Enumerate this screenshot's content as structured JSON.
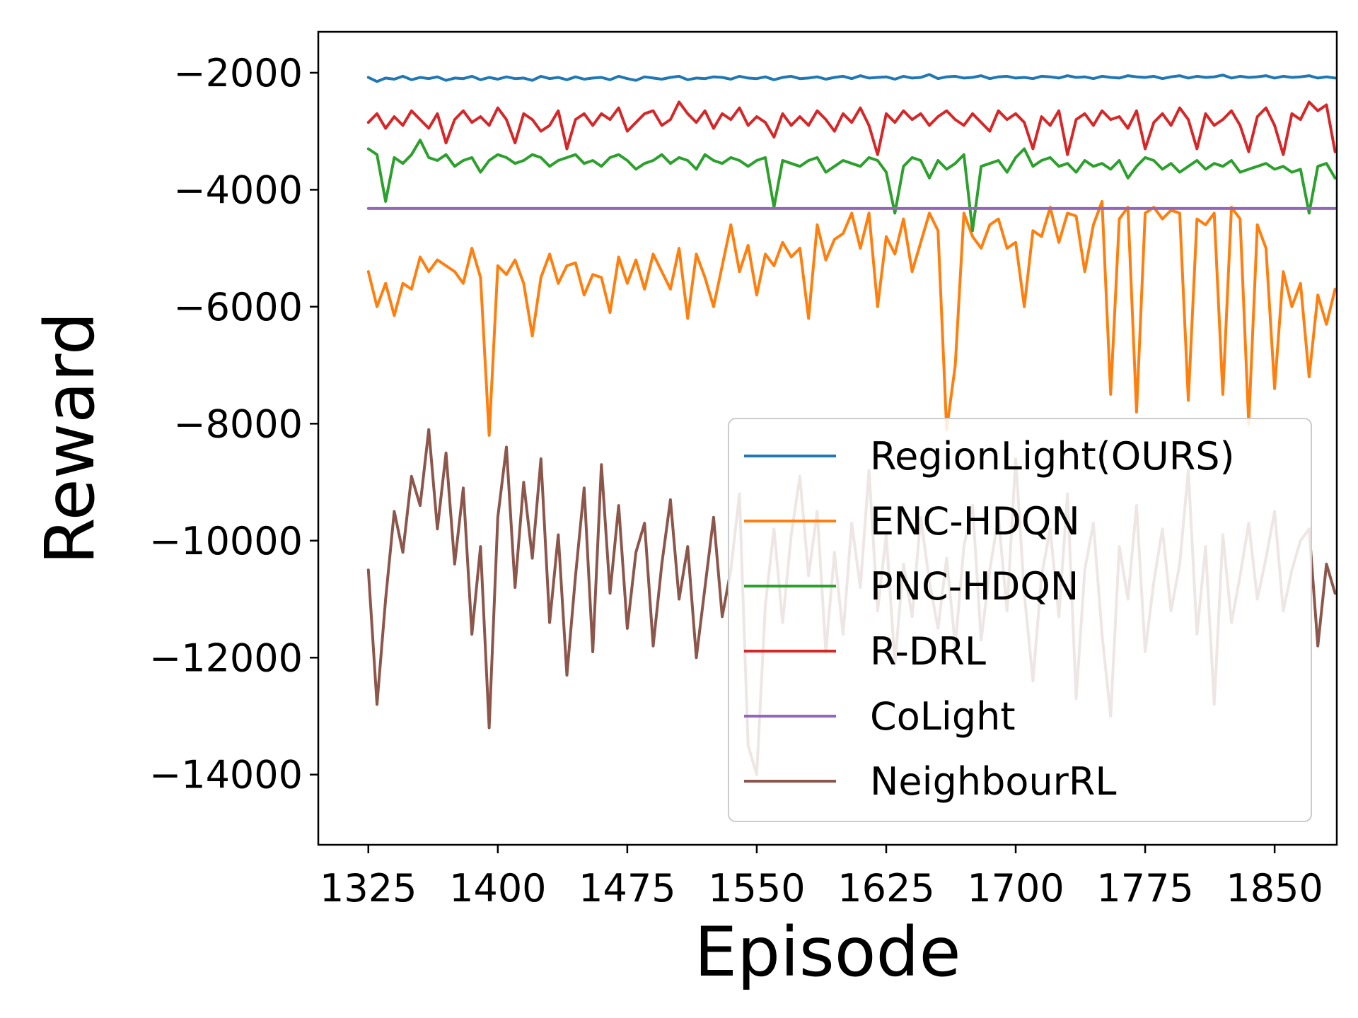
{
  "chart_data": {
    "type": "line",
    "title": "",
    "xlabel": "Episode",
    "ylabel": "Reward",
    "xlim": [
      1296,
      1886
    ],
    "ylim": [
      -15200,
      -1300
    ],
    "xticks": [
      {
        "value": 1325,
        "label": "1325"
      },
      {
        "value": 1400,
        "label": "1400"
      },
      {
        "value": 1475,
        "label": "1475"
      },
      {
        "value": 1550,
        "label": "1550"
      },
      {
        "value": 1625,
        "label": "1625"
      },
      {
        "value": 1700,
        "label": "1700"
      },
      {
        "value": 1775,
        "label": "1775"
      },
      {
        "value": 1850,
        "label": "1850"
      }
    ],
    "yticks": [
      {
        "value": -2000,
        "label": "−2000"
      },
      {
        "value": -4000,
        "label": "−4000"
      },
      {
        "value": -6000,
        "label": "−6000"
      },
      {
        "value": -8000,
        "label": "−8000"
      },
      {
        "value": -10000,
        "label": "−10000"
      },
      {
        "value": -12000,
        "label": "−12000"
      },
      {
        "value": -14000,
        "label": "−14000"
      }
    ],
    "grid": false,
    "legend_position": "lower-right",
    "x": [
      1325,
      1330,
      1335,
      1340,
      1345,
      1350,
      1355,
      1360,
      1365,
      1370,
      1375,
      1380,
      1385,
      1390,
      1395,
      1400,
      1405,
      1410,
      1415,
      1420,
      1425,
      1430,
      1435,
      1440,
      1445,
      1450,
      1455,
      1460,
      1465,
      1470,
      1475,
      1480,
      1485,
      1490,
      1495,
      1500,
      1505,
      1510,
      1515,
      1520,
      1525,
      1530,
      1535,
      1540,
      1545,
      1550,
      1555,
      1560,
      1565,
      1570,
      1575,
      1580,
      1585,
      1590,
      1595,
      1600,
      1605,
      1610,
      1615,
      1620,
      1625,
      1630,
      1635,
      1640,
      1645,
      1650,
      1655,
      1660,
      1665,
      1670,
      1675,
      1680,
      1685,
      1690,
      1695,
      1700,
      1705,
      1710,
      1715,
      1720,
      1725,
      1730,
      1735,
      1740,
      1745,
      1750,
      1755,
      1760,
      1765,
      1770,
      1775,
      1780,
      1785,
      1790,
      1795,
      1800,
      1805,
      1810,
      1815,
      1820,
      1825,
      1830,
      1835,
      1840,
      1845,
      1850,
      1855,
      1860,
      1865,
      1870,
      1875,
      1880,
      1885
    ],
    "series": [
      {
        "name": "RegionLight(OURS)",
        "color": "#1f77b4",
        "values": [
          -2080,
          -2150,
          -2090,
          -2110,
          -2060,
          -2120,
          -2080,
          -2100,
          -2070,
          -2130,
          -2090,
          -2100,
          -2060,
          -2120,
          -2080,
          -2110,
          -2070,
          -2100,
          -2090,
          -2130,
          -2060,
          -2100,
          -2080,
          -2120,
          -2070,
          -2110,
          -2090,
          -2080,
          -2120,
          -2060,
          -2100,
          -2130,
          -2070,
          -2090,
          -2110,
          -2080,
          -2060,
          -2120,
          -2090,
          -2100,
          -2070,
          -2080,
          -2110,
          -2060,
          -2090,
          -2100,
          -2070,
          -2120,
          -2080,
          -2060,
          -2100,
          -2090,
          -2070,
          -2110,
          -2080,
          -2060,
          -2100,
          -2050,
          -2090,
          -2080,
          -2070,
          -2110,
          -2060,
          -2090,
          -2080,
          -2030,
          -2100,
          -2070,
          -2060,
          -2090,
          -2080,
          -2050,
          -2100,
          -2070,
          -2060,
          -2090,
          -2080,
          -2100,
          -2060,
          -2070,
          -2090,
          -2050,
          -2080,
          -2070,
          -2100,
          -2060,
          -2080,
          -2090,
          -2050,
          -2070,
          -2080,
          -2060,
          -2100,
          -2070,
          -2050,
          -2090,
          -2060,
          -2080,
          -2070,
          -2040,
          -2090,
          -2060,
          -2080,
          -2070,
          -2050,
          -2090,
          -2060,
          -2080,
          -2070,
          -2050,
          -2090,
          -2070,
          -2090
        ]
      },
      {
        "name": "ENC-HDQN",
        "color": "#ff7f0e",
        "values": [
          -5400,
          -6000,
          -5600,
          -6150,
          -5600,
          -5700,
          -5150,
          -5400,
          -5200,
          -5300,
          -5400,
          -5600,
          -5000,
          -5500,
          -8200,
          -5300,
          -5450,
          -5200,
          -5600,
          -6500,
          -5500,
          -5100,
          -5600,
          -5300,
          -5250,
          -5800,
          -5450,
          -5500,
          -6100,
          -5150,
          -5600,
          -5200,
          -5700,
          -5100,
          -5400,
          -5700,
          -5000,
          -6200,
          -5100,
          -5500,
          -6000,
          -5300,
          -4600,
          -5400,
          -4950,
          -5800,
          -5100,
          -5300,
          -4900,
          -5150,
          -5000,
          -6200,
          -4600,
          -5200,
          -4850,
          -4750,
          -4400,
          -5000,
          -4400,
          -6000,
          -4800,
          -5100,
          -4500,
          -5400,
          -4900,
          -4400,
          -4700,
          -8100,
          -7000,
          -4400,
          -4800,
          -5000,
          -4600,
          -4500,
          -5000,
          -4900,
          -6000,
          -4700,
          -4800,
          -4300,
          -4900,
          -4400,
          -4450,
          -5400,
          -4600,
          -4200,
          -7500,
          -4500,
          -4300,
          -7800,
          -4400,
          -4300,
          -4500,
          -4350,
          -4400,
          -7600,
          -4500,
          -4600,
          -4400,
          -7500,
          -4300,
          -4500,
          -8000,
          -4600,
          -5000,
          -7400,
          -5400,
          -6000,
          -5600,
          -7200,
          -5800,
          -6300,
          -5700
        ]
      },
      {
        "name": "PNC-HDQN",
        "color": "#2ca02c",
        "values": [
          -3300,
          -3400,
          -4200,
          -3450,
          -3550,
          -3400,
          -3150,
          -3450,
          -3500,
          -3400,
          -3600,
          -3500,
          -3450,
          -3700,
          -3500,
          -3400,
          -3450,
          -3550,
          -3500,
          -3400,
          -3450,
          -3600,
          -3500,
          -3450,
          -3400,
          -3550,
          -3500,
          -3600,
          -3450,
          -3400,
          -3500,
          -3650,
          -3550,
          -3500,
          -3400,
          -3550,
          -3450,
          -3500,
          -3650,
          -3400,
          -3500,
          -3550,
          -3450,
          -3500,
          -3600,
          -3500,
          -3450,
          -4300,
          -3500,
          -3550,
          -3600,
          -3500,
          -3450,
          -3700,
          -3600,
          -3500,
          -3550,
          -3600,
          -3450,
          -3500,
          -3700,
          -4400,
          -3600,
          -3450,
          -3500,
          -3800,
          -3500,
          -3650,
          -3550,
          -3400,
          -4700,
          -3600,
          -3550,
          -3500,
          -3700,
          -3450,
          -3300,
          -3600,
          -3500,
          -3450,
          -3600,
          -3550,
          -3700,
          -3500,
          -3600,
          -3550,
          -3650,
          -3500,
          -3800,
          -3600,
          -3450,
          -3500,
          -3650,
          -3550,
          -3700,
          -3600,
          -3500,
          -3650,
          -3550,
          -3600,
          -3500,
          -3700,
          -3650,
          -3600,
          -3550,
          -3650,
          -3600,
          -3700,
          -3650,
          -4400,
          -3600,
          -3550,
          -3800
        ]
      },
      {
        "name": "R-DRL",
        "color": "#d62728",
        "values": [
          -2850,
          -2700,
          -2950,
          -2750,
          -2900,
          -2650,
          -2800,
          -2950,
          -2700,
          -3200,
          -2800,
          -2650,
          -2850,
          -2750,
          -2900,
          -2600,
          -2800,
          -3200,
          -2700,
          -2800,
          -3000,
          -2900,
          -2650,
          -3300,
          -2800,
          -2700,
          -2900,
          -2700,
          -2800,
          -2600,
          -3000,
          -2850,
          -2700,
          -2650,
          -2900,
          -2800,
          -2500,
          -2700,
          -2850,
          -2650,
          -2950,
          -2700,
          -2800,
          -2600,
          -2900,
          -2750,
          -2850,
          -3100,
          -2700,
          -2900,
          -2750,
          -2900,
          -2650,
          -2800,
          -3000,
          -2700,
          -2850,
          -2600,
          -2900,
          -3400,
          -2700,
          -2850,
          -2650,
          -2800,
          -2700,
          -2900,
          -2750,
          -2650,
          -2800,
          -2900,
          -2700,
          -2850,
          -3000,
          -2650,
          -2800,
          -2700,
          -2850,
          -3300,
          -2750,
          -2900,
          -2650,
          -3400,
          -2800,
          -2700,
          -2900,
          -2650,
          -2800,
          -2750,
          -2950,
          -2650,
          -3300,
          -2850,
          -2700,
          -2900,
          -2600,
          -2800,
          -3300,
          -2700,
          -2900,
          -2800,
          -2650,
          -2900,
          -3350,
          -2750,
          -2600,
          -2900,
          -3400,
          -2700,
          -2800,
          -2500,
          -2650,
          -2550,
          -3350
        ]
      },
      {
        "name": "CoLight",
        "color": "#9467bd",
        "values": [
          -4320,
          -4320,
          -4320,
          -4320,
          -4320,
          -4320,
          -4320,
          -4320,
          -4320,
          -4320,
          -4320,
          -4320,
          -4320,
          -4320,
          -4320,
          -4320,
          -4320,
          -4320,
          -4320,
          -4320,
          -4320,
          -4320,
          -4320,
          -4320,
          -4320,
          -4320,
          -4320,
          -4320,
          -4320,
          -4320,
          -4320,
          -4320,
          -4320,
          -4320,
          -4320,
          -4320,
          -4320,
          -4320,
          -4320,
          -4320,
          -4320,
          -4320,
          -4320,
          -4320,
          -4320,
          -4320,
          -4320,
          -4320,
          -4320,
          -4320,
          -4320,
          -4320,
          -4320,
          -4320,
          -4320,
          -4320,
          -4320,
          -4320,
          -4320,
          -4320,
          -4320,
          -4320,
          -4320,
          -4320,
          -4320,
          -4320,
          -4320,
          -4320,
          -4320,
          -4320,
          -4320,
          -4320,
          -4320,
          -4320,
          -4320,
          -4320,
          -4320,
          -4320,
          -4320,
          -4320,
          -4320,
          -4320,
          -4320,
          -4320,
          -4320,
          -4320,
          -4320,
          -4320,
          -4320,
          -4320,
          -4320,
          -4320,
          -4320,
          -4320,
          -4320,
          -4320,
          -4320,
          -4320,
          -4320,
          -4320,
          -4320,
          -4320,
          -4320,
          -4320,
          -4320,
          -4320,
          -4320,
          -4320,
          -4320,
          -4320,
          -4320,
          -4320,
          -4320
        ]
      },
      {
        "name": "NeighbourRL",
        "color": "#8c564b",
        "values": [
          -10500,
          -12800,
          -11000,
          -9500,
          -10200,
          -8900,
          -9400,
          -8100,
          -9800,
          -8500,
          -10400,
          -9100,
          -11600,
          -10100,
          -13200,
          -9600,
          -8400,
          -10800,
          -9000,
          -10300,
          -8600,
          -11400,
          -9900,
          -12300,
          -10600,
          -9100,
          -11900,
          -8700,
          -10900,
          -9400,
          -11500,
          -10200,
          -9700,
          -11800,
          -10400,
          -9300,
          -11000,
          -10100,
          -12000,
          -10800,
          -9600,
          -11300,
          -10500,
          -9200,
          -13500,
          -14000,
          -11100,
          -9800,
          -11400,
          -9900,
          -8900,
          -10600,
          -9500,
          -11900,
          -10200,
          -11600,
          -9700,
          -10800,
          -8800,
          -11200,
          -9900,
          -12100,
          -10400,
          -11300,
          -9600,
          -10700,
          -11500,
          -10300,
          -11800,
          -10100,
          -9400,
          -11700,
          -10500,
          -9600,
          -11200,
          -8600,
          -10900,
          -12400,
          -10600,
          -9800,
          -11300,
          -9200,
          -12700,
          -10500,
          -9700,
          -11600,
          -13000,
          -10100,
          -11000,
          -9400,
          -11900,
          -10700,
          -9800,
          -11200,
          -10400,
          -8800,
          -11600,
          -10100,
          -12800,
          -9900,
          -11400,
          -10600,
          -9700,
          -11000,
          -10300,
          -9500,
          -11200,
          -10500,
          -10000,
          -9800,
          -11800,
          -10400,
          -10900
        ]
      }
    ]
  }
}
